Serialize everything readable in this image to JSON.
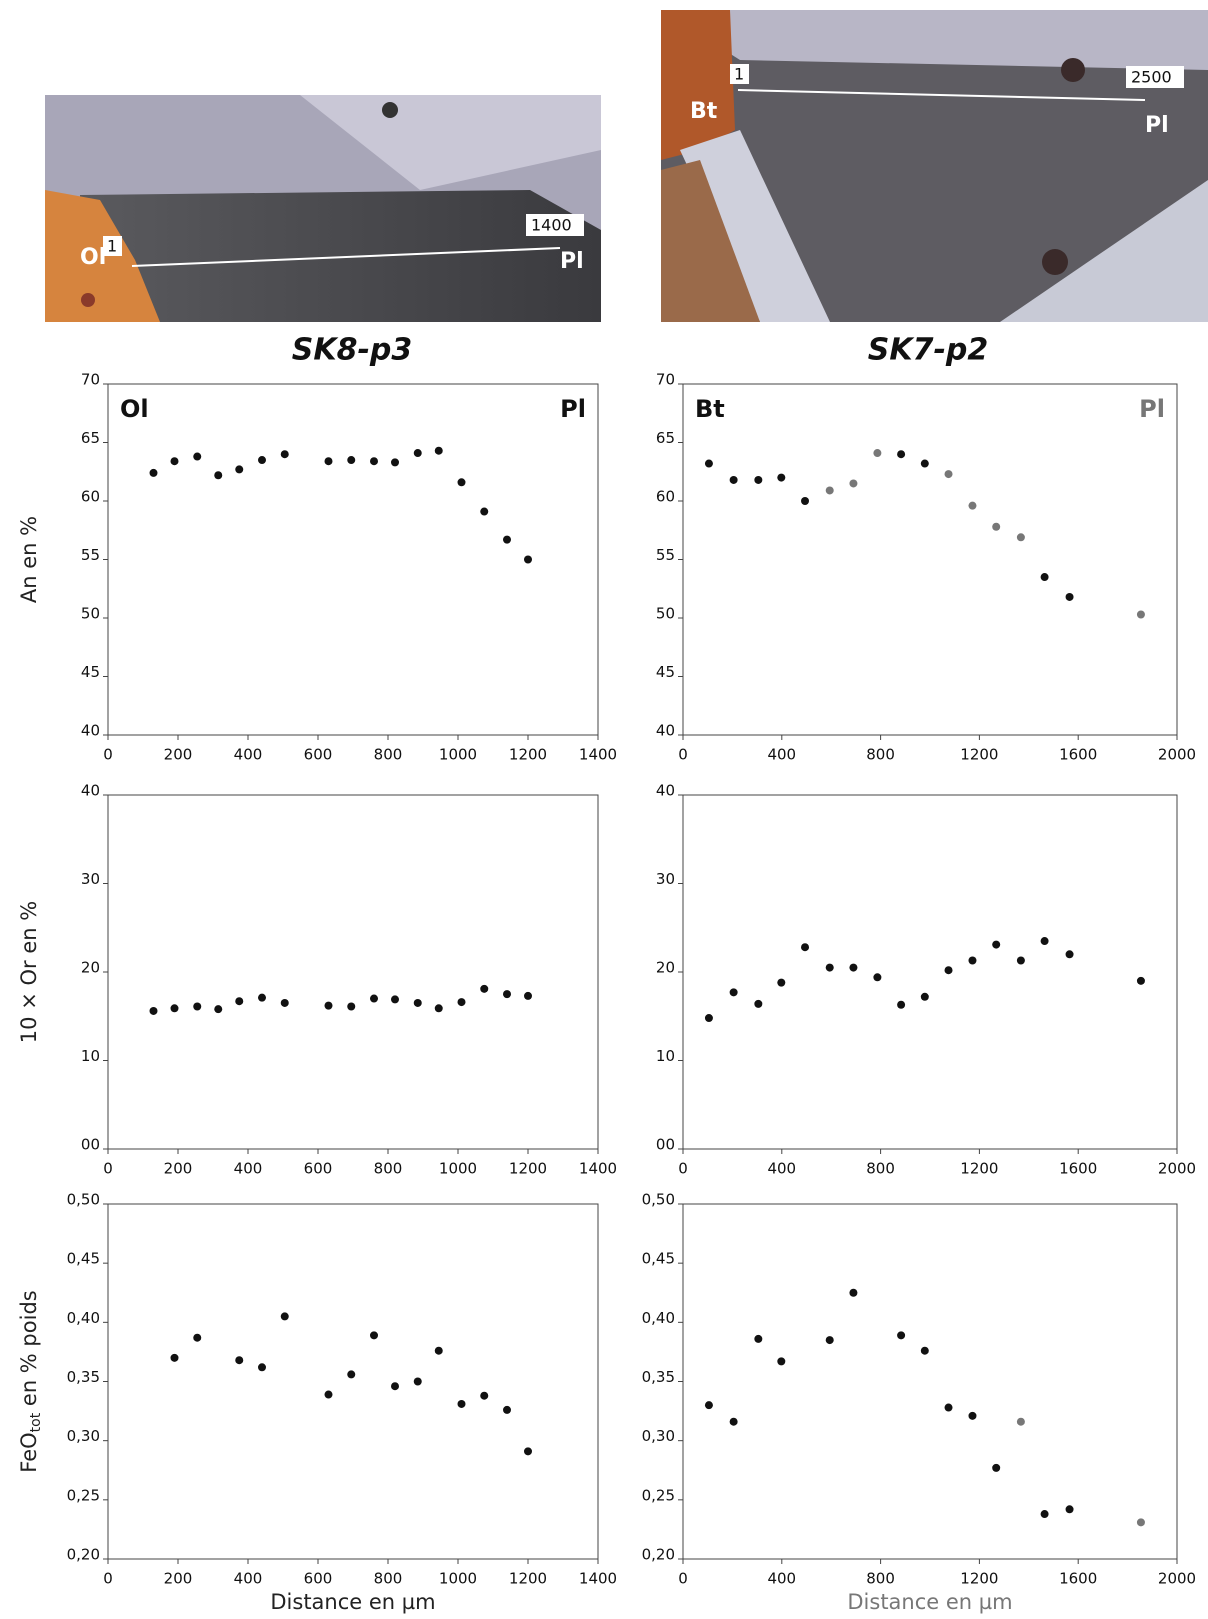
{
  "figures": [
    {
      "title": "SK8-p3",
      "photo_labels": [
        "Ol",
        "1",
        "1400",
        "Pl"
      ]
    },
    {
      "title": "SK7-p2",
      "photo_labels": [
        "1",
        "2500",
        "Bt",
        "Pl"
      ]
    }
  ],
  "chart_data": [
    {
      "type": "scatter",
      "ylabel": "An en %",
      "color": "#111",
      "annotations": [
        {
          "text": "Ol",
          "corner": "top-left"
        },
        {
          "text": "Pl",
          "corner": "top-right"
        }
      ],
      "x": [
        130,
        190,
        255,
        315,
        375,
        440,
        505,
        630,
        695,
        760,
        820,
        885,
        945,
        1010,
        1075,
        1140,
        1200
      ],
      "values": [
        62.4,
        63.4,
        63.8,
        62.2,
        62.7,
        63.5,
        64.0,
        63.4,
        63.5,
        63.4,
        63.3,
        64.1,
        64.3,
        61.6,
        59.1,
        56.7,
        55.0
      ],
      "xlim": [
        0,
        1400
      ],
      "xticks": [
        0,
        200,
        400,
        600,
        800,
        1000,
        1200,
        1400
      ],
      "ylim": [
        40,
        70
      ],
      "yticks": [
        40,
        45,
        50,
        55,
        60,
        65,
        70
      ]
    },
    {
      "type": "scatter",
      "color": "#111",
      "annotations": [
        {
          "text": "Bt",
          "corner": "top-left"
        },
        {
          "text": "Pl",
          "corner": "top-right",
          "color": "#777"
        }
      ],
      "x": [
        105,
        205,
        305,
        398,
        494,
        594,
        690,
        787,
        883,
        979,
        1075,
        1172,
        1268,
        1368,
        1464,
        1565,
        1854
      ],
      "values": [
        63.2,
        61.8,
        61.8,
        62.0,
        60.0,
        60.9,
        61.5,
        64.1,
        64.0,
        63.2,
        62.3,
        59.6,
        57.8,
        56.9,
        53.5,
        51.8,
        50.3
      ],
      "point_colors": [
        "#111",
        "#111",
        "#111",
        "#111",
        "#111",
        "#777",
        "#777",
        "#777",
        "#111",
        "#111",
        "#777",
        "#777",
        "#777",
        "#777",
        "#111",
        "#111",
        "#777"
      ],
      "xlim": [
        0,
        2000
      ],
      "xticks": [
        0,
        400,
        800,
        1200,
        1600,
        2000
      ],
      "ylim": [
        40,
        70
      ],
      "yticks": [
        40,
        45,
        50,
        55,
        60,
        65,
        70
      ]
    },
    {
      "type": "scatter",
      "ylabel": "10 × Or en %",
      "color": "#111",
      "x": [
        130,
        190,
        255,
        315,
        375,
        440,
        505,
        630,
        695,
        760,
        820,
        885,
        945,
        1010,
        1075,
        1140,
        1200
      ],
      "values": [
        15.6,
        15.9,
        16.1,
        15.8,
        16.7,
        17.1,
        16.5,
        16.2,
        16.1,
        17.0,
        16.9,
        16.5,
        15.9,
        16.6,
        18.1,
        17.5,
        17.3
      ],
      "xlim": [
        0,
        1400
      ],
      "xticks": [
        0,
        200,
        400,
        600,
        800,
        1000,
        1200,
        1400
      ],
      "ylim": [
        0,
        40
      ],
      "yticks": [
        {
          "value": 0,
          "label": "00"
        },
        10,
        20,
        30,
        40
      ]
    },
    {
      "type": "scatter",
      "color": "#111",
      "x": [
        105,
        205,
        305,
        398,
        494,
        594,
        690,
        787,
        883,
        979,
        1075,
        1172,
        1268,
        1368,
        1464,
        1565,
        1854
      ],
      "values": [
        14.8,
        17.7,
        16.4,
        18.8,
        22.8,
        20.5,
        20.5,
        19.4,
        16.3,
        17.2,
        20.2,
        21.3,
        23.1,
        21.3,
        23.5,
        22.0,
        19.0
      ],
      "xlim": [
        0,
        2000
      ],
      "xticks": [
        0,
        400,
        800,
        1200,
        1600,
        2000
      ],
      "ylim": [
        0,
        40
      ],
      "yticks": [
        {
          "value": 0,
          "label": "00"
        },
        10,
        20,
        30,
        40
      ]
    },
    {
      "type": "scatter",
      "ylabel": [
        "FeO",
        "tot",
        " en % poids"
      ],
      "xlabel": "Distance en µm",
      "color": "#111",
      "x": [
        190,
        255,
        375,
        440,
        505,
        630,
        695,
        760,
        820,
        885,
        945,
        1010,
        1075,
        1140,
        1200
      ],
      "values": [
        0.37,
        0.387,
        0.368,
        0.362,
        0.405,
        0.339,
        0.356,
        0.389,
        0.346,
        0.35,
        0.376,
        0.331,
        0.338,
        0.326,
        0.291
      ],
      "xlim": [
        0,
        1400
      ],
      "xticks": [
        0,
        200,
        400,
        600,
        800,
        1000,
        1200,
        1400
      ],
      "ylim": [
        0.2,
        0.5
      ],
      "yticks": [
        {
          "value": 0.2,
          "label": "0,20"
        },
        {
          "value": 0.25,
          "label": "0,25"
        },
        {
          "value": 0.3,
          "label": "0,30"
        },
        {
          "value": 0.35,
          "label": "0,35"
        },
        {
          "value": 0.4,
          "label": "0,40"
        },
        {
          "value": 0.45,
          "label": "0,45"
        },
        {
          "value": 0.5,
          "label": "0,50"
        }
      ]
    },
    {
      "type": "scatter",
      "xlabel": "Distance en µm",
      "xlabel_color": "#777",
      "color": "#111",
      "x": [
        105,
        205,
        305,
        398,
        594,
        690,
        883,
        979,
        1075,
        1172,
        1268,
        1368,
        1464,
        1565,
        1854
      ],
      "values": [
        0.33,
        0.316,
        0.386,
        0.367,
        0.385,
        0.425,
        0.389,
        0.376,
        0.328,
        0.321,
        0.277,
        0.316,
        0.238,
        0.242,
        0.231
      ],
      "point_colors": [
        "#111",
        "#111",
        "#111",
        "#111",
        "#111",
        "#111",
        "#111",
        "#111",
        "#111",
        "#111",
        "#111",
        "#777",
        "#111",
        "#111",
        "#777"
      ],
      "xlim": [
        0,
        2000
      ],
      "xticks": [
        0,
        400,
        800,
        1200,
        1600,
        2000
      ],
      "ylim": [
        0.2,
        0.5
      ],
      "yticks": [
        {
          "value": 0.2,
          "label": "0,20"
        },
        {
          "value": 0.25,
          "label": "0,25"
        },
        {
          "value": 0.3,
          "label": "0,30"
        },
        {
          "value": 0.35,
          "label": "0,35"
        },
        {
          "value": 0.4,
          "label": "0,40"
        },
        {
          "value": 0.45,
          "label": "0,45"
        },
        {
          "value": 0.5,
          "label": "0,50"
        }
      ]
    }
  ]
}
